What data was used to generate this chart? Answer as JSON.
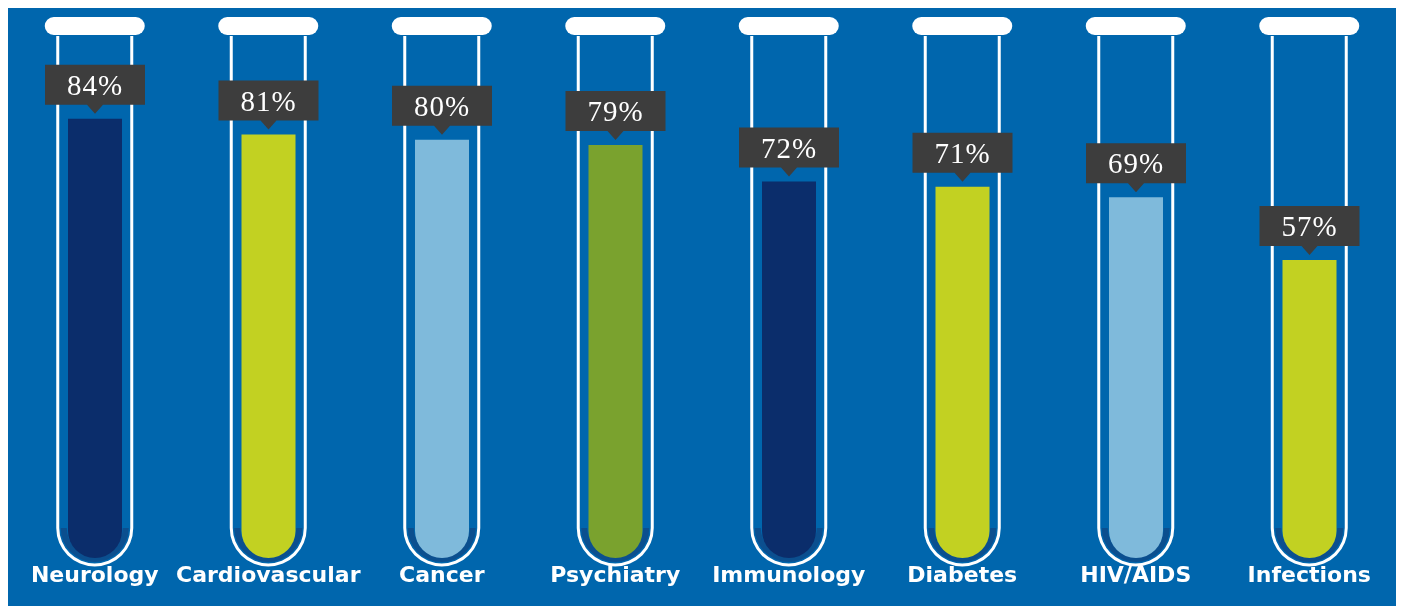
{
  "chart_data": {
    "type": "bar",
    "categories": [
      "Neurology",
      "Cardiovascular",
      "Cancer",
      "Psychiatry",
      "Immunology",
      "Diabetes",
      "HIV/AIDS",
      "Infections"
    ],
    "values": [
      84,
      81,
      80,
      79,
      72,
      71,
      69,
      57
    ],
    "colors": [
      "#0b2d6b",
      "#c2d122",
      "#7fbadb",
      "#7aa22e",
      "#0b2d6b",
      "#c2d122",
      "#7fbadb",
      "#c2d122"
    ],
    "value_labels": [
      "84%",
      "81%",
      "80%",
      "79%",
      "72%",
      "71%",
      "69%",
      "57%"
    ]
  }
}
